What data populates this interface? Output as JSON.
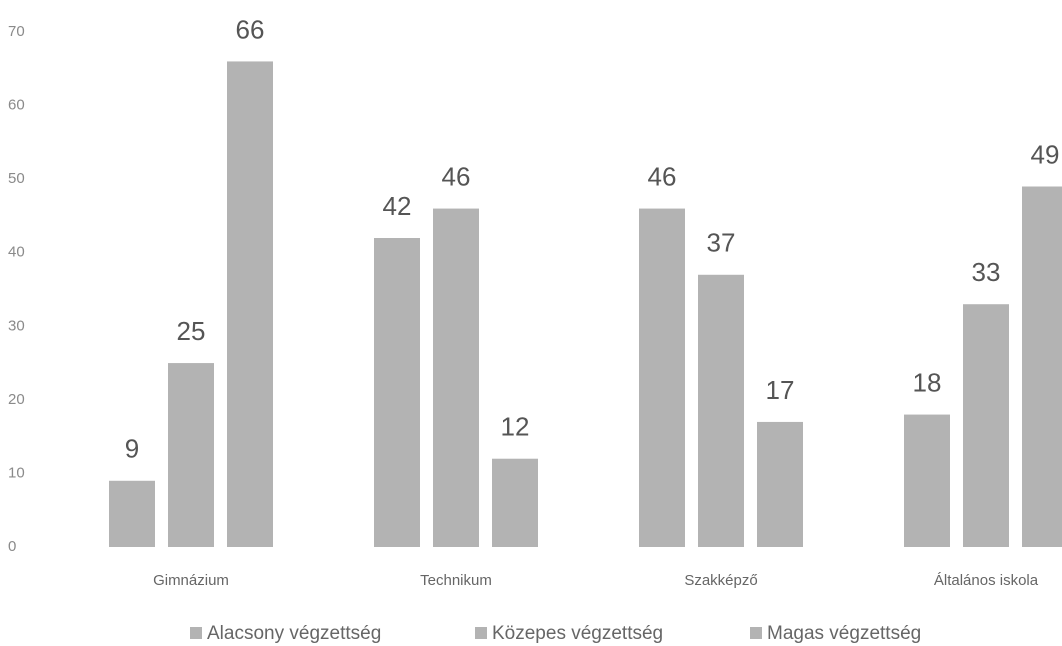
{
  "chart_data": {
    "type": "bar",
    "categories": [
      "Gimnázium",
      "Technikum",
      "Szakképző",
      "Általános iskola"
    ],
    "series": [
      {
        "name": "Alacsony végzettség",
        "color": "#b3b3b3",
        "values": [
          9,
          42,
          46,
          18
        ]
      },
      {
        "name": "Közepes végzettség",
        "color": "#b3b3b3",
        "values": [
          25,
          46,
          37,
          33
        ]
      },
      {
        "name": "Magas végzettség",
        "color": "#b3b3b3",
        "values": [
          66,
          12,
          17,
          49
        ]
      }
    ],
    "ylim": [
      0,
      70
    ],
    "yticks": [
      0,
      10,
      20,
      30,
      40,
      50,
      60,
      70
    ],
    "grid": false,
    "legend": "bottom"
  }
}
